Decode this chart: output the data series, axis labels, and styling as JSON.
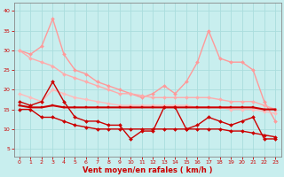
{
  "title": "",
  "xlabel": "Vent moyen/en rafales ( km/h )",
  "ylabel": "",
  "background_color": "#c8eeee",
  "grid_color": "#aadddd",
  "xlim": [
    -0.5,
    23.5
  ],
  "ylim": [
    3,
    42
  ],
  "yticks": [
    5,
    10,
    15,
    20,
    25,
    30,
    35,
    40
  ],
  "xticks": [
    0,
    1,
    2,
    3,
    4,
    5,
    6,
    7,
    8,
    9,
    10,
    11,
    12,
    13,
    14,
    15,
    16,
    17,
    18,
    19,
    20,
    21,
    22,
    23
  ],
  "lines": [
    {
      "x": [
        0,
        1,
        2,
        3,
        4,
        5,
        6,
        7,
        8,
        9,
        10,
        11,
        12,
        13,
        14,
        15,
        16,
        17,
        18,
        19,
        20,
        21,
        22,
        23
      ],
      "y": [
        30,
        29,
        31,
        38,
        29,
        25,
        24,
        22,
        21,
        20,
        19,
        18,
        19,
        21,
        19,
        22,
        27,
        35,
        28,
        27,
        27,
        25,
        17,
        12
      ],
      "color": "#ff9999",
      "linewidth": 1.0,
      "marker": "D",
      "markersize": 2.0
    },
    {
      "x": [
        0,
        1,
        2,
        3,
        4,
        5,
        6,
        7,
        8,
        9,
        10,
        11,
        12,
        13,
        14,
        15,
        16,
        17,
        18,
        19,
        20,
        21,
        22,
        23
      ],
      "y": [
        30,
        28,
        27,
        26,
        24,
        23,
        22,
        21,
        20,
        19,
        19,
        18.5,
        18,
        18,
        18,
        18,
        18,
        18,
        17.5,
        17,
        17,
        17,
        16,
        15
      ],
      "color": "#ffaaaa",
      "linewidth": 1.0,
      "marker": "D",
      "markersize": 2.0
    },
    {
      "x": [
        0,
        1,
        2,
        3,
        4,
        5,
        6,
        7,
        8,
        9,
        10,
        11,
        12,
        13,
        14,
        15,
        16,
        17,
        18,
        19,
        20,
        21,
        22,
        23
      ],
      "y": [
        19,
        18,
        17,
        20,
        19,
        18,
        17.5,
        17,
        16.5,
        16,
        16,
        16,
        16,
        16,
        16,
        16,
        15.5,
        15.5,
        15.5,
        15,
        15,
        15,
        14.5,
        14
      ],
      "color": "#ffbbbb",
      "linewidth": 1.0,
      "marker": "D",
      "markersize": 2.0
    },
    {
      "x": [
        0,
        1,
        2,
        3,
        4,
        5,
        6,
        7,
        8,
        9,
        10,
        11,
        12,
        13,
        14,
        15,
        16,
        17,
        18,
        19,
        20,
        21,
        22,
        23
      ],
      "y": [
        17,
        16,
        17,
        22,
        17,
        13,
        12,
        12,
        11,
        11,
        7.5,
        9.5,
        9.5,
        15.5,
        15.5,
        10,
        11,
        13,
        12,
        11,
        12,
        13,
        7.5,
        7.5
      ],
      "color": "#cc0000",
      "linewidth": 1.0,
      "marker": "D",
      "markersize": 2.0
    },
    {
      "x": [
        0,
        1,
        2,
        3,
        4,
        5,
        6,
        7,
        8,
        9,
        10,
        11,
        12,
        13,
        14,
        15,
        16,
        17,
        18,
        19,
        20,
        21,
        22,
        23
      ],
      "y": [
        16,
        15.5,
        15.5,
        16,
        15.5,
        15.5,
        15.5,
        15.5,
        15.5,
        15.5,
        15.5,
        15.5,
        15.5,
        15.5,
        15.5,
        15.5,
        15.5,
        15.5,
        15.5,
        15.5,
        15.5,
        15.5,
        15,
        15
      ],
      "color": "#cc0000",
      "linewidth": 1.5,
      "marker": "s",
      "markersize": 2.0
    },
    {
      "x": [
        0,
        1,
        2,
        3,
        4,
        5,
        6,
        7,
        8,
        9,
        10,
        11,
        12,
        13,
        14,
        15,
        16,
        17,
        18,
        19,
        20,
        21,
        22,
        23
      ],
      "y": [
        15,
        15,
        13,
        13,
        12,
        11,
        10.5,
        10,
        10,
        10,
        10,
        10,
        10,
        10,
        10,
        10,
        10,
        10,
        10,
        9.5,
        9.5,
        9,
        8.5,
        8
      ],
      "color": "#cc0000",
      "linewidth": 1.0,
      "marker": "D",
      "markersize": 2.0
    }
  ]
}
